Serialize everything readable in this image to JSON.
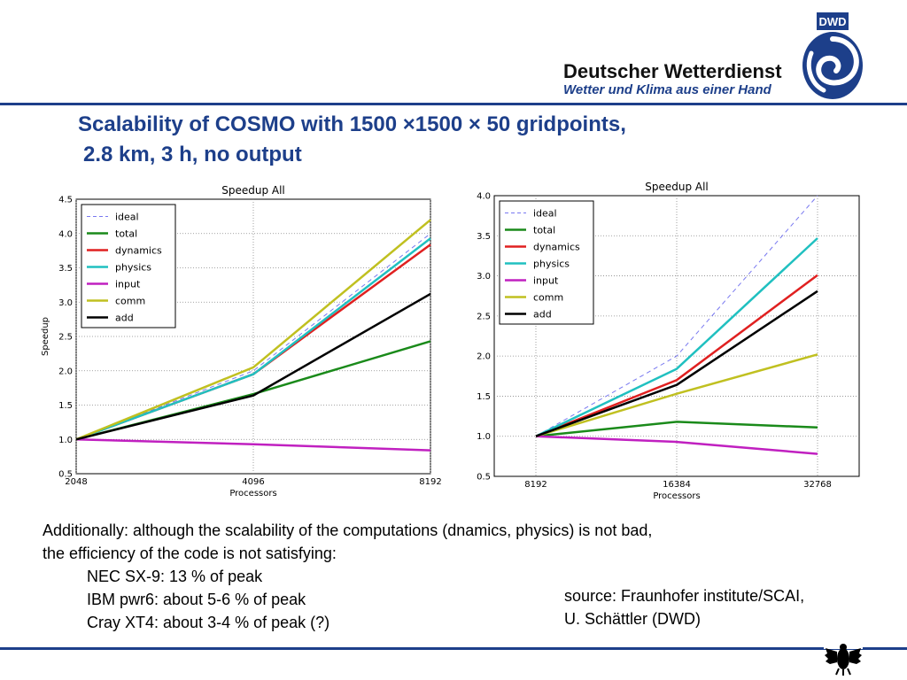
{
  "header": {
    "logo_badge": "DWD",
    "logo_name": "Deutscher Wetterdienst",
    "logo_tagline": "Wetter und Klima aus einer Hand"
  },
  "slide": {
    "title_line1": "Scalability of COSMO with 1500 ×1500 × 50 gridpoints,",
    "title_line2": "2.8 km, 3 h, no output",
    "body_lines": [
      "Additionally: although the scalability of the computations (dnamics, physics) is not bad,",
      "the efficiency of the code is not satisfying:"
    ],
    "indented_lines": [
      "NEC SX-9: 13 % of peak",
      "IBM pwr6: about 5-6 % of peak",
      "Cray XT4: about 3-4 % of peak (?)"
    ],
    "source_lines": [
      "source: Fraunhofer institute/SCAI,",
      "U. Schättler (DWD)"
    ]
  },
  "colors": {
    "brand_blue": "#1d3f8a",
    "ideal": "#7878f0",
    "total": "#1a8a1a",
    "dynamics": "#e02020",
    "physics": "#20c0c0",
    "input": "#c020c0",
    "comm": "#c0c020",
    "add": "#000000"
  },
  "chart_data": [
    {
      "type": "line",
      "title": "Speedup All",
      "xlabel": "Processors",
      "ylabel": "Speedup",
      "x": [
        2048,
        4096,
        8192
      ],
      "x_tick_labels": [
        "2048",
        "4096",
        "8192"
      ],
      "y_ticks": [
        "0.5",
        "1.0",
        "1.5",
        "2.0",
        "2.5",
        "3.0",
        "3.5",
        "4.0",
        "4.5"
      ],
      "ylim": [
        0.5,
        4.5
      ],
      "grid": true,
      "legend": "top-left",
      "series": [
        {
          "name": "ideal",
          "key": "ideal",
          "dashed": true,
          "values": [
            1.0,
            2.0,
            4.0
          ]
        },
        {
          "name": "total",
          "key": "total",
          "values": [
            1.0,
            1.66,
            2.43
          ]
        },
        {
          "name": "dynamics",
          "key": "dynamics",
          "values": [
            1.0,
            1.95,
            3.84
          ]
        },
        {
          "name": "physics",
          "key": "physics",
          "values": [
            1.0,
            1.95,
            3.93
          ]
        },
        {
          "name": "input",
          "key": "input",
          "values": [
            1.0,
            0.93,
            0.84
          ]
        },
        {
          "name": "comm",
          "key": "comm",
          "values": [
            1.0,
            2.05,
            4.2
          ]
        },
        {
          "name": "add",
          "key": "add",
          "values": [
            1.0,
            1.64,
            3.12
          ]
        }
      ]
    },
    {
      "type": "line",
      "title": "Speedup All",
      "xlabel": "Processors",
      "ylabel": "",
      "x": [
        8192,
        16384,
        32768
      ],
      "x_tick_labels": [
        "8192",
        "16384",
        "32768"
      ],
      "y_ticks": [
        "0.5",
        "1.0",
        "1.5",
        "2.0",
        "2.5",
        "3.0",
        "3.5",
        "4.0"
      ],
      "ylim": [
        0.5,
        4.0
      ],
      "grid": true,
      "legend": "top-left",
      "series": [
        {
          "name": "ideal",
          "key": "ideal",
          "dashed": true,
          "values": [
            1.0,
            2.0,
            4.0
          ]
        },
        {
          "name": "total",
          "key": "total",
          "values": [
            1.0,
            1.18,
            1.11
          ]
        },
        {
          "name": "dynamics",
          "key": "dynamics",
          "values": [
            1.0,
            1.7,
            3.01
          ]
        },
        {
          "name": "physics",
          "key": "physics",
          "values": [
            1.0,
            1.84,
            3.47
          ]
        },
        {
          "name": "input",
          "key": "input",
          "values": [
            1.0,
            0.93,
            0.78
          ]
        },
        {
          "name": "comm",
          "key": "comm",
          "values": [
            1.0,
            1.53,
            2.02
          ]
        },
        {
          "name": "add",
          "key": "add",
          "values": [
            1.0,
            1.64,
            2.81
          ]
        }
      ]
    }
  ]
}
